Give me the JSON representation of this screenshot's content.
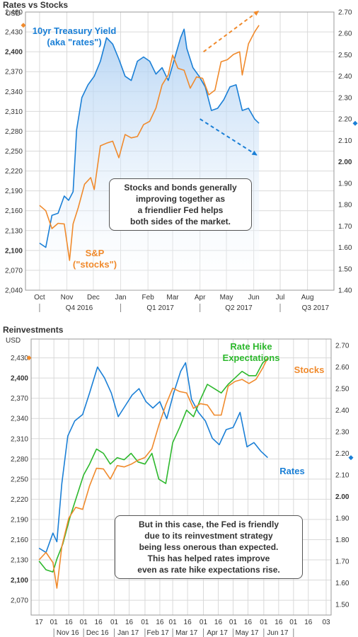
{
  "chart_data": [
    {
      "type": "line",
      "title": "Rates vs Stocks",
      "unit_label": "USD",
      "left_axis": {
        "ticks": [
          "2,040",
          "2,070",
          "2,100",
          "2,130",
          "2,160",
          "2,190",
          "2,220",
          "2,250",
          "2,280",
          "2,310",
          "2,340",
          "2,370",
          "2,400",
          "2,430",
          "2,460"
        ],
        "range": [
          2040,
          2460
        ],
        "bold": [
          "2,100",
          "2,400"
        ]
      },
      "right_axis": {
        "ticks": [
          "1.40",
          "1.50",
          "1.60",
          "1.70",
          "1.80",
          "1.90",
          "2.00",
          "2.10",
          "2.20",
          "2.30",
          "2.40",
          "2.50",
          "2.60",
          "2.70"
        ],
        "range": [
          1.4,
          2.7
        ],
        "bold": [
          "2.00"
        ]
      },
      "x_tick_labels": [
        "Oct",
        "Nov",
        "Dec",
        "Jan",
        "Feb",
        "Mar",
        "Apr",
        "May",
        "Jun",
        "Jul",
        "Aug"
      ],
      "quarter_labels": [
        "Q4 2016",
        "Q1 2017",
        "Q2 2017",
        "Q3 2017"
      ],
      "grid": true,
      "series": [
        {
          "name": "10yr Treasury Yield (aka \"rates\")",
          "color": "#1a7fd6",
          "axis": "right",
          "x": [
            "2016-10-01",
            "2016-10-08",
            "2016-10-15",
            "2016-10-22",
            "2016-10-29",
            "2016-11-03",
            "2016-11-08",
            "2016-11-12",
            "2016-11-18",
            "2016-11-25",
            "2016-12-02",
            "2016-12-09",
            "2016-12-16",
            "2016-12-23",
            "2016-12-30",
            "2017-01-06",
            "2017-01-13",
            "2017-01-20",
            "2017-01-27",
            "2017-02-03",
            "2017-02-10",
            "2017-02-17",
            "2017-02-24",
            "2017-03-03",
            "2017-03-10",
            "2017-03-14",
            "2017-03-17",
            "2017-03-24",
            "2017-03-31",
            "2017-04-07",
            "2017-04-14",
            "2017-04-21",
            "2017-04-28",
            "2017-05-05",
            "2017-05-12",
            "2017-05-19",
            "2017-05-26",
            "2017-06-02",
            "2017-06-07"
          ],
          "y": [
            1.62,
            1.6,
            1.75,
            1.76,
            1.84,
            1.82,
            1.86,
            2.15,
            2.3,
            2.36,
            2.4,
            2.47,
            2.58,
            2.55,
            2.48,
            2.4,
            2.38,
            2.47,
            2.49,
            2.47,
            2.41,
            2.44,
            2.38,
            2.48,
            2.58,
            2.62,
            2.53,
            2.44,
            2.4,
            2.35,
            2.24,
            2.25,
            2.29,
            2.35,
            2.36,
            2.24,
            2.25,
            2.2,
            2.18
          ]
        },
        {
          "name": "S&P (\"stocks\")",
          "color": "#f08a2c",
          "axis": "left",
          "x": [
            "2016-10-01",
            "2016-10-08",
            "2016-10-15",
            "2016-10-22",
            "2016-10-29",
            "2016-11-04",
            "2016-11-08",
            "2016-11-14",
            "2016-11-21",
            "2016-11-28",
            "2016-12-02",
            "2016-12-09",
            "2016-12-16",
            "2016-12-23",
            "2016-12-30",
            "2017-01-06",
            "2017-01-13",
            "2017-01-20",
            "2017-01-27",
            "2017-02-03",
            "2017-02-10",
            "2017-02-17",
            "2017-02-24",
            "2017-03-01",
            "2017-03-07",
            "2017-03-14",
            "2017-03-21",
            "2017-03-28",
            "2017-04-04",
            "2017-04-11",
            "2017-04-18",
            "2017-04-25",
            "2017-05-02",
            "2017-05-09",
            "2017-05-16",
            "2017-05-19",
            "2017-05-26",
            "2017-06-02",
            "2017-06-07"
          ],
          "y": [
            2168,
            2160,
            2133,
            2141,
            2140,
            2085,
            2140,
            2165,
            2200,
            2210,
            2192,
            2258,
            2262,
            2265,
            2240,
            2275,
            2270,
            2272,
            2290,
            2295,
            2315,
            2350,
            2365,
            2395,
            2375,
            2372,
            2345,
            2362,
            2360,
            2335,
            2342,
            2385,
            2388,
            2396,
            2400,
            2365,
            2412,
            2430,
            2440
          ]
        }
      ],
      "annotations": [
        "Stocks and bonds generally improving together as a friendlier Fed helps both sides of the market."
      ]
    },
    {
      "type": "line",
      "title": "Reinvestments",
      "unit_label": "USD",
      "left_axis": {
        "ticks": [
          "2,070",
          "2,100",
          "2,130",
          "2,160",
          "2,190",
          "2,220",
          "2,250",
          "2,280",
          "2,310",
          "2,340",
          "2,370",
          "2,400",
          "2,430"
        ],
        "range": [
          2048,
          2458
        ],
        "bold": [
          "2,100",
          "2,400"
        ]
      },
      "right_axis": {
        "ticks": [
          "1.50",
          "1.60",
          "1.70",
          "1.80",
          "1.90",
          "2.00",
          "2.10",
          "2.20",
          "2.30",
          "2.40",
          "2.50",
          "2.60",
          "2.70"
        ],
        "range": [
          1.45,
          2.73
        ],
        "bold": [
          "2.00"
        ]
      },
      "x_tick_labels": [
        "17",
        "01",
        "16",
        "01",
        "16",
        "01",
        "16",
        "01",
        "16",
        "01",
        "16",
        "01",
        "16",
        "01",
        "16",
        "01",
        "16",
        "01",
        "16",
        "03"
      ],
      "month_labels": [
        "Nov 16",
        "Dec 16",
        "Jan 17",
        "Feb 17",
        "Mar 17",
        "Apr 17",
        "May 17",
        "Jun 17"
      ],
      "grid": true,
      "series": [
        {
          "name": "Rates",
          "color": "#1a7fd6",
          "axis": "right",
          "x": [
            "2016-10-17",
            "2016-10-24",
            "2016-10-31",
            "2016-11-04",
            "2016-11-09",
            "2016-11-15",
            "2016-11-22",
            "2016-11-30",
            "2016-12-07",
            "2016-12-15",
            "2016-12-22",
            "2016-12-29",
            "2017-01-05",
            "2017-01-12",
            "2017-01-19",
            "2017-01-26",
            "2017-02-02",
            "2017-02-09",
            "2017-02-16",
            "2017-02-23",
            "2017-03-02",
            "2017-03-09",
            "2017-03-14",
            "2017-03-20",
            "2017-03-27",
            "2017-04-03",
            "2017-04-10",
            "2017-04-17",
            "2017-04-24",
            "2017-05-01",
            "2017-05-08",
            "2017-05-15",
            "2017-05-22",
            "2017-05-29",
            "2017-06-05"
          ],
          "y": [
            1.76,
            1.74,
            1.83,
            1.79,
            2.06,
            2.28,
            2.35,
            2.38,
            2.48,
            2.6,
            2.55,
            2.48,
            2.37,
            2.42,
            2.47,
            2.5,
            2.44,
            2.41,
            2.44,
            2.36,
            2.48,
            2.58,
            2.62,
            2.45,
            2.39,
            2.35,
            2.27,
            2.24,
            2.31,
            2.32,
            2.39,
            2.23,
            2.25,
            2.21,
            2.18
          ]
        },
        {
          "name": "Rate Hike Expectations",
          "color": "#2db82d",
          "axis": "right",
          "x": [
            "2016-10-17",
            "2016-10-24",
            "2016-10-31",
            "2016-11-04",
            "2016-11-10",
            "2016-11-17",
            "2016-11-24",
            "2016-12-01",
            "2016-12-07",
            "2016-12-14",
            "2016-12-21",
            "2016-12-28",
            "2017-01-04",
            "2017-01-11",
            "2017-01-18",
            "2017-01-25",
            "2017-02-01",
            "2017-02-08",
            "2017-02-15",
            "2017-02-22",
            "2017-03-01",
            "2017-03-08",
            "2017-03-15",
            "2017-03-22",
            "2017-03-29",
            "2017-04-05",
            "2017-04-12",
            "2017-04-19",
            "2017-04-26",
            "2017-05-03",
            "2017-05-10",
            "2017-05-17",
            "2017-05-24",
            "2017-05-31",
            "2017-06-05"
          ],
          "y": [
            1.7,
            1.66,
            1.65,
            1.71,
            1.78,
            1.9,
            2.0,
            2.1,
            2.15,
            2.22,
            2.2,
            2.15,
            2.18,
            2.17,
            2.2,
            2.16,
            2.15,
            2.2,
            2.08,
            2.06,
            2.25,
            2.32,
            2.4,
            2.37,
            2.45,
            2.52,
            2.5,
            2.48,
            2.52,
            2.55,
            2.58,
            2.56,
            2.56,
            2.62,
            2.64
          ]
        },
        {
          "name": "Stocks",
          "color": "#f08a2c",
          "axis": "left",
          "x": [
            "2016-10-17",
            "2016-10-24",
            "2016-10-31",
            "2016-11-04",
            "2016-11-09",
            "2016-11-16",
            "2016-11-23",
            "2016-11-30",
            "2016-12-07",
            "2016-12-14",
            "2016-12-21",
            "2016-12-28",
            "2017-01-04",
            "2017-01-11",
            "2017-01-18",
            "2017-01-25",
            "2017-02-01",
            "2017-02-08",
            "2017-02-15",
            "2017-02-22",
            "2017-03-01",
            "2017-03-08",
            "2017-03-15",
            "2017-03-22",
            "2017-03-29",
            "2017-04-05",
            "2017-04-12",
            "2017-04-19",
            "2017-04-26",
            "2017-05-03",
            "2017-05-10",
            "2017-05-17",
            "2017-05-24",
            "2017-05-31",
            "2017-06-05"
          ],
          "y": [
            2130,
            2141,
            2126,
            2088,
            2150,
            2192,
            2208,
            2205,
            2240,
            2266,
            2265,
            2250,
            2270,
            2268,
            2272,
            2278,
            2282,
            2295,
            2330,
            2360,
            2385,
            2380,
            2378,
            2355,
            2362,
            2360,
            2345,
            2345,
            2388,
            2395,
            2398,
            2392,
            2398,
            2415,
            2430
          ]
        }
      ],
      "annotations": [
        "But in this case, the Fed is friendly due to its reinvestment strategy being less onerous than expected. This has helped rates improve even as rate hike expectations rise."
      ]
    }
  ],
  "panel1": {
    "title": "Rates vs Stocks",
    "unit": "USD",
    "rates_label": [
      "10yr Treasury Yield",
      "(aka \"rates\")"
    ],
    "stocks_label": [
      "S&P",
      "(\"stocks\")"
    ],
    "note": [
      "Stocks and bonds generally",
      "improving together as",
      "a friendlier Fed helps",
      "both sides of the market."
    ]
  },
  "panel2": {
    "title": "Reinvestments",
    "unit": "USD",
    "hike_label": [
      "Rate Hike",
      "Expectations"
    ],
    "stocks_label": "Stocks",
    "rates_label": "Rates",
    "note": [
      "But in this case, the Fed is friendly",
      "due to its reinvestment strategy",
      "being less onerous than expected.",
      "This has helped rates improve",
      "even as rate hike expectations rise."
    ]
  },
  "colors": {
    "rates": "#1a7fd6",
    "stocks": "#f08a2c",
    "hike": "#2db82d",
    "grid": "#d9d9d9",
    "axis": "#444444",
    "shade": "#cfe3f7"
  }
}
